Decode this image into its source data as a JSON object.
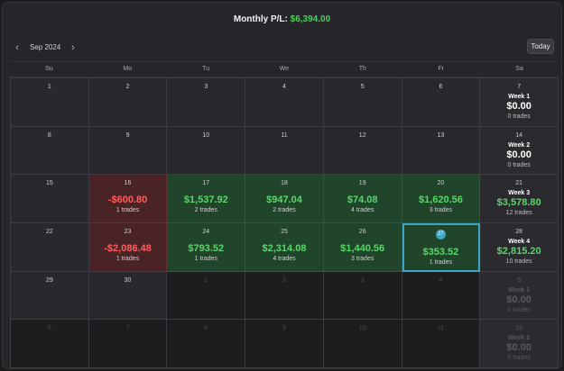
{
  "header": {
    "summary_label": "Monthly P/L:",
    "summary_value": "$6,394.00",
    "month_label": "Sep 2024",
    "prev_icon": "chevron-left-icon",
    "next_icon": "chevron-right-icon",
    "today_label": "Today"
  },
  "colors": {
    "positive": "#58d868",
    "negative": "#ff5f5f",
    "today_accent": "#3aa7c9",
    "gain_bg": "#21452b",
    "loss_bg": "#4a2326"
  },
  "weekdays": [
    "Su",
    "Mo",
    "Tu",
    "We",
    "Th",
    "Fr",
    "Sa"
  ],
  "weeks": [
    {
      "days": [
        {
          "day": "1"
        },
        {
          "day": "2"
        },
        {
          "day": "3"
        },
        {
          "day": "4"
        },
        {
          "day": "5"
        },
        {
          "day": "6"
        }
      ],
      "summary": {
        "day": "7",
        "label": "Week 1",
        "pnl": "$0.00",
        "trades": "0 trades"
      }
    },
    {
      "days": [
        {
          "day": "8"
        },
        {
          "day": "9"
        },
        {
          "day": "10"
        },
        {
          "day": "11"
        },
        {
          "day": "12"
        },
        {
          "day": "13"
        }
      ],
      "summary": {
        "day": "14",
        "label": "Week 2",
        "pnl": "$0.00",
        "trades": "0 trades"
      }
    },
    {
      "days": [
        {
          "day": "15"
        },
        {
          "day": "16",
          "pnl": "-$600.80",
          "trades": "1 trades",
          "status": "loss"
        },
        {
          "day": "17",
          "pnl": "$1,537.92",
          "trades": "2 trades",
          "status": "gain"
        },
        {
          "day": "18",
          "pnl": "$947.04",
          "trades": "2 trades",
          "status": "gain"
        },
        {
          "day": "19",
          "pnl": "$74.08",
          "trades": "4 trades",
          "status": "gain"
        },
        {
          "day": "20",
          "pnl": "$1,620.56",
          "trades": "3 trades",
          "status": "gain"
        }
      ],
      "summary": {
        "day": "21",
        "label": "Week 3",
        "pnl": "$3,578.80",
        "trades": "12 trades",
        "status": "gain"
      }
    },
    {
      "days": [
        {
          "day": "22"
        },
        {
          "day": "23",
          "pnl": "-$2,086.48",
          "trades": "1 trades",
          "status": "loss"
        },
        {
          "day": "24",
          "pnl": "$793.52",
          "trades": "1 trades",
          "status": "gain"
        },
        {
          "day": "25",
          "pnl": "$2,314.08",
          "trades": "4 trades",
          "status": "gain"
        },
        {
          "day": "26",
          "pnl": "$1,440.56",
          "trades": "3 trades",
          "status": "gain"
        },
        {
          "day": "27",
          "pnl": "$353.52",
          "trades": "1 trades",
          "status": "gain",
          "today": true
        }
      ],
      "summary": {
        "day": "28",
        "label": "Week 4",
        "pnl": "$2,815.20",
        "trades": "10 trades",
        "status": "gain"
      }
    },
    {
      "days": [
        {
          "day": "29"
        },
        {
          "day": "30"
        },
        {
          "day": "1",
          "outside": true
        },
        {
          "day": "2",
          "outside": true
        },
        {
          "day": "3",
          "outside": true
        },
        {
          "day": "4",
          "outside": true
        }
      ],
      "summary": {
        "day": "5",
        "label": "Week 1",
        "pnl": "$0.00",
        "trades": "0 trades",
        "outside": true
      }
    },
    {
      "days": [
        {
          "day": "6",
          "outside": true
        },
        {
          "day": "7",
          "outside": true
        },
        {
          "day": "8",
          "outside": true
        },
        {
          "day": "9",
          "outside": true
        },
        {
          "day": "10",
          "outside": true
        },
        {
          "day": "11",
          "outside": true
        }
      ],
      "summary": {
        "day": "12",
        "label": "Week 2",
        "pnl": "$0.00",
        "trades": "0 trades",
        "outside": true
      }
    }
  ]
}
